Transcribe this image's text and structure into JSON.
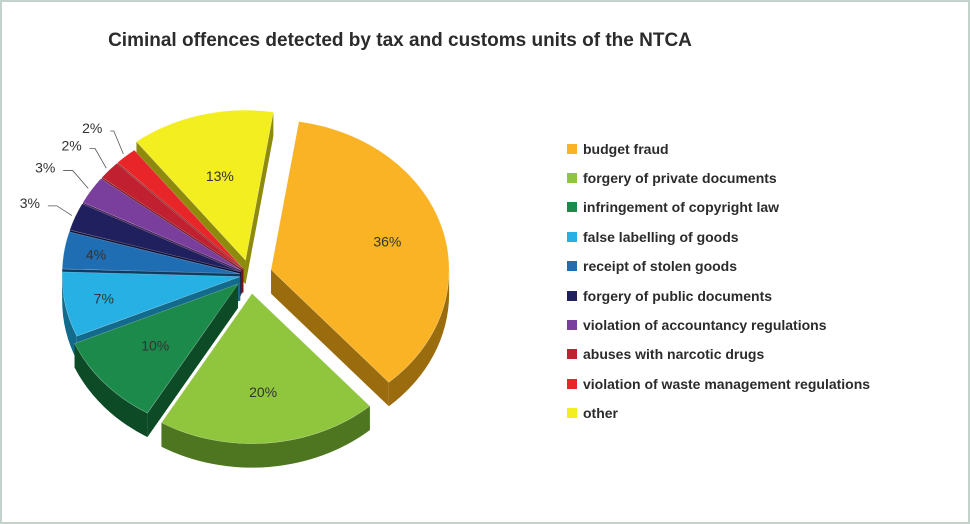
{
  "chart_data": {
    "type": "pie",
    "title": "Ciminal offences detected by tax and customs units of the NTCA",
    "legend_position": "right",
    "exploded": true,
    "slices": [
      {
        "label": "budget fraud",
        "value": 36,
        "display": "36%",
        "color": "#f9b324",
        "side": "#9a6c0e"
      },
      {
        "label": "forgery of private documents",
        "value": 20,
        "display": "20%",
        "color": "#8fc63e",
        "side": "#4e7520"
      },
      {
        "label": "infringement of copyright law",
        "value": 10,
        "display": "10%",
        "color": "#1c8a4a",
        "side": "#0d4b27"
      },
      {
        "label": "false labelling of goods",
        "value": 7,
        "display": "7%",
        "color": "#27b0e4",
        "side": "#126a8c"
      },
      {
        "label": "receipt of stolen goods",
        "value": 4,
        "display": "4%",
        "color": "#1f6db3",
        "side": "#0e3b63"
      },
      {
        "label": "forgery of public documents",
        "value": 3,
        "display": "3%",
        "color": "#21205e",
        "side": "#0f0e33"
      },
      {
        "label": "violation of accountancy regulations",
        "value": 3,
        "display": "3%",
        "color": "#7a3e9d",
        "side": "#421f56"
      },
      {
        "label": "abuses with narcotic drugs",
        "value": 2,
        "display": "2%",
        "color": "#c0202f",
        "side": "#6b0f18"
      },
      {
        "label": "violation of waste management regulations",
        "value": 2,
        "display": "2%",
        "color": "#e8262a",
        "side": "#85110f"
      },
      {
        "label": "other",
        "value": 13,
        "display": "13%",
        "color": "#f2ee20",
        "side": "#8e8b0c"
      }
    ]
  }
}
